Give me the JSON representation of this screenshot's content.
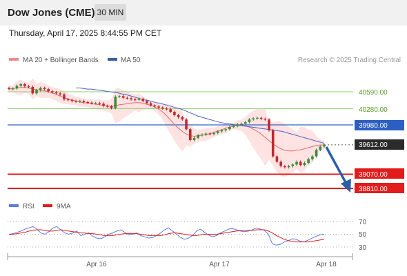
{
  "header": {
    "title": "Dow Jones (CME)",
    "timeframe": "30 MIN",
    "datetime": "Thursday, April 17, 2025 8:44:55 PM CET"
  },
  "legend": {
    "ma20_label": "MA 20 + Bollinger Bands",
    "ma50_label": "MA 50",
    "credit": "Research © 2025 Trading Central"
  },
  "rsi_legend": {
    "rsi_label": "RSI",
    "ma_label": "9MA"
  },
  "colors": {
    "up": "#3a8a3a",
    "down": "#c0272d",
    "bollinger": "#ffd9d9",
    "ma20": "#e06a6a",
    "ma50": "#4a5fc8",
    "resistance": "#8fcf6a",
    "pivot": "#2d5fc2",
    "support": "#e21b1b",
    "arrow": "#2b5ea8",
    "rsi": "#5b7de0"
  },
  "chart_data": [
    {
      "type": "candlestick",
      "title": "Dow Jones (CME)",
      "timeframe": "30 MIN",
      "x_ticks": [
        "Apr 16",
        "Apr 17",
        "Apr 18"
      ],
      "price_levels": [
        {
          "value": "40590.00",
          "kind": "resistance"
        },
        {
          "value": "40280.00",
          "kind": "resistance"
        },
        {
          "value": "39980.00",
          "kind": "pivot"
        },
        {
          "value": "39612.00",
          "kind": "last"
        },
        {
          "value": "39070.00",
          "kind": "support"
        },
        {
          "value": "38810.00",
          "kind": "support"
        }
      ],
      "close_series": [
        40640,
        40650,
        40700,
        40730,
        40690,
        40680,
        40560,
        40620,
        40660,
        40640,
        40600,
        40580,
        40560,
        40540,
        40450,
        40440,
        40420,
        40410,
        40420,
        40400,
        40390,
        40380,
        40380,
        40370,
        40330,
        40320,
        40290,
        40500,
        40510,
        40480,
        40470,
        40450,
        40440,
        40460,
        40420,
        40380,
        40340,
        40320,
        40300,
        40280,
        40270,
        40220,
        40160,
        40120,
        40080,
        39900,
        39700,
        39740,
        39790,
        39800,
        39820,
        39810,
        39830,
        39860,
        39880,
        39900,
        39940,
        39960,
        39990,
        40000,
        40030,
        40080,
        40100,
        40110,
        40090,
        40080,
        39880,
        39400,
        39300,
        39220,
        39200,
        39220,
        39250,
        39300,
        39240,
        39280,
        39350,
        39400,
        39520,
        39580,
        39612
      ],
      "ma20_series": [
        40640,
        40650,
        40660,
        40670,
        40670,
        40660,
        40640,
        40630,
        40620,
        40610,
        40590,
        40570,
        40540,
        40510,
        40480,
        40460,
        40440,
        40420,
        40400,
        40390,
        40380,
        40370,
        40360,
        40350,
        40340,
        40330,
        40320,
        40330,
        40350,
        40360,
        40370,
        40380,
        40390,
        40390,
        40380,
        40360,
        40340,
        40310,
        40270,
        40220,
        40150,
        40070,
        39990,
        39920,
        39860,
        39810,
        39780,
        39770,
        39780,
        39790,
        39800,
        39820,
        39840,
        39870,
        39890,
        39920,
        39940,
        39960,
        39970,
        39970,
        39960,
        39940,
        39900,
        39860,
        39810,
        39750,
        39690,
        39630,
        39580,
        39540,
        39510,
        39500,
        39500,
        39510,
        39520,
        39540,
        39560,
        39580,
        39600,
        39610,
        39612
      ],
      "ma50_series": [
        40660,
        40660,
        40650,
        40640,
        40640,
        40630,
        40620,
        40610,
        40600,
        40590,
        40580,
        40570,
        40550,
        40540,
        40520,
        40500,
        40480,
        40460,
        40440,
        40430,
        40410,
        40390,
        40380,
        40360,
        40340,
        40320,
        40300,
        40280,
        40260,
        40230,
        40200,
        40170,
        40140,
        40120,
        40100,
        40080,
        40060,
        40040,
        40020,
        40010,
        40000,
        39990,
        39980,
        39970,
        39960,
        39950,
        39940,
        39930,
        39920,
        39910,
        39900,
        39890,
        39880,
        39870,
        39860,
        39840,
        39820,
        39800,
        39780,
        39760,
        39740,
        39720,
        39700,
        39680,
        39660,
        39640
      ]
    },
    {
      "type": "line",
      "title": "RSI",
      "series_names": [
        "RSI",
        "9MA"
      ],
      "y_ticks": [
        "70",
        "50",
        "30"
      ],
      "ylim": [
        20,
        80
      ],
      "rsi_values": [
        50,
        51,
        53,
        55,
        58,
        60,
        62,
        58,
        52,
        50,
        54,
        60,
        62,
        57,
        52,
        50,
        52,
        55,
        48,
        50,
        52,
        47,
        44,
        43,
        46,
        50,
        52,
        55,
        57,
        53,
        49,
        50,
        52,
        48,
        46,
        44,
        45,
        48,
        52,
        57,
        60,
        55,
        50,
        45,
        42,
        44,
        48,
        55,
        58,
        53,
        49,
        46,
        48,
        52,
        55,
        58,
        59,
        57,
        55,
        54,
        55,
        57,
        60,
        58,
        56,
        50,
        35,
        33,
        34,
        38,
        40,
        43,
        42,
        39,
        38,
        41,
        44,
        47,
        49,
        50
      ],
      "ma_values": [
        50,
        50,
        51,
        52,
        53,
        55,
        56,
        57,
        57,
        56,
        55,
        55,
        56,
        57,
        56,
        55,
        54,
        53,
        52,
        52,
        51,
        51,
        50,
        49,
        48,
        48,
        48,
        49,
        50,
        51,
        51,
        51,
        51,
        50,
        49,
        48,
        48,
        48,
        48,
        49,
        51,
        52,
        52,
        51,
        50,
        49,
        48,
        48,
        49,
        50,
        50,
        50,
        50,
        51,
        52,
        53,
        54,
        55,
        56,
        56,
        56,
        56,
        57,
        57,
        57,
        55,
        52,
        48,
        45,
        42,
        40,
        39,
        38,
        38,
        38,
        38,
        39,
        40,
        41,
        42
      ]
    }
  ]
}
